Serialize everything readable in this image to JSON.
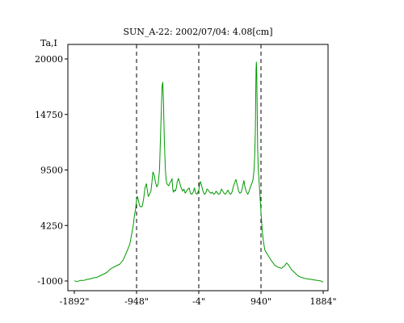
{
  "chart_data": {
    "type": "line",
    "title": "SUN_A-22: 2002/07/04: 4.08[cm]",
    "ylabel": "Ta,I",
    "xlabel": "",
    "xlim": [
      -1892,
      1884
    ],
    "ylim": [
      -1000,
      20000
    ],
    "xticks": [
      -1892,
      -948,
      -4,
      940,
      1884
    ],
    "xtick_labels": [
      "-1892\"",
      "-948\"",
      "-4\"",
      "940\"",
      "1884\""
    ],
    "yticks": [
      -1000,
      4250,
      9500,
      14750,
      20000
    ],
    "ytick_labels": [
      "-1000",
      "4250",
      "9500",
      "14750",
      "20000"
    ],
    "vlines": [
      -948,
      -4,
      940
    ],
    "grid": false,
    "line_color": "#009900",
    "series": [
      {
        "x": [
          -1892,
          -1850,
          -1800,
          -1750,
          -1700,
          -1650,
          -1600,
          -1550,
          -1500,
          -1450,
          -1400,
          -1350,
          -1300,
          -1250,
          -1200,
          -1150,
          -1100,
          -1050,
          -1000,
          -980,
          -960,
          -948,
          -935,
          -920,
          -900,
          -880,
          -860,
          -840,
          -820,
          -800,
          -785,
          -770,
          -760,
          -745,
          -730,
          -715,
          -700,
          -680,
          -660,
          -640,
          -620,
          -600,
          -585,
          -570,
          -560,
          -550,
          -540,
          -525,
          -510,
          -500,
          -490,
          -475,
          -460,
          -440,
          -420,
          -410,
          -400,
          -390,
          -375,
          -360,
          -345,
          -330,
          -310,
          -290,
          -270,
          -250,
          -230,
          -210,
          -190,
          -170,
          -150,
          -130,
          -110,
          -90,
          -70,
          -50,
          -30,
          -10,
          0,
          10,
          20,
          40,
          60,
          80,
          100,
          120,
          140,
          160,
          180,
          200,
          220,
          240,
          260,
          280,
          300,
          320,
          340,
          360,
          380,
          400,
          420,
          440,
          460,
          480,
          500,
          520,
          540,
          560,
          580,
          600,
          620,
          640,
          660,
          680,
          700,
          720,
          740,
          760,
          780,
          800,
          820,
          835,
          845,
          855,
          860,
          865,
          870,
          875,
          880,
          885,
          890,
          900,
          920,
          940,
          960,
          980,
          1000,
          1050,
          1100,
          1150,
          1200,
          1250,
          1300,
          1330,
          1360,
          1400,
          1450,
          1500,
          1550,
          1600,
          1650,
          1700,
          1750,
          1800,
          1850,
          1884
        ],
        "y": [
          -980,
          -1050,
          -950,
          -950,
          -850,
          -800,
          -700,
          -650,
          -500,
          -350,
          -200,
          100,
          300,
          450,
          600,
          1000,
          1700,
          2500,
          4200,
          5200,
          5900,
          6700,
          7000,
          6600,
          6100,
          6000,
          6100,
          6800,
          7800,
          8200,
          7600,
          7000,
          7100,
          7300,
          7500,
          8300,
          9300,
          9000,
          8300,
          7900,
          8200,
          9500,
          12500,
          15500,
          17400,
          17800,
          16000,
          12000,
          9500,
          8700,
          8200,
          8100,
          8000,
          8300,
          8500,
          8700,
          7800,
          7400,
          7600,
          7500,
          7800,
          8400,
          8700,
          8200,
          7800,
          7500,
          7700,
          7300,
          7500,
          7700,
          7800,
          7300,
          7200,
          7400,
          7800,
          7300,
          7200,
          7500,
          7700,
          8200,
          8400,
          8000,
          7500,
          7200,
          7300,
          7700,
          7600,
          7400,
          7300,
          7400,
          7200,
          7300,
          7500,
          7300,
          7200,
          7300,
          7700,
          7500,
          7300,
          7200,
          7400,
          7600,
          7300,
          7200,
          7400,
          7900,
          8300,
          8600,
          8100,
          7500,
          7300,
          7400,
          7900,
          8500,
          7800,
          7400,
          7200,
          7500,
          7900,
          8200,
          8600,
          9500,
          11000,
          13500,
          16500,
          19000,
          19700,
          18800,
          16500,
          14000,
          11500,
          9500,
          7500,
          5500,
          3700,
          2600,
          1900,
          1400,
          900,
          500,
          300,
          200,
          450,
          700,
          500,
          100,
          -200,
          -500,
          -650,
          -750,
          -800,
          -850,
          -900,
          -950,
          -1000,
          -1100
        ]
      }
    ]
  }
}
